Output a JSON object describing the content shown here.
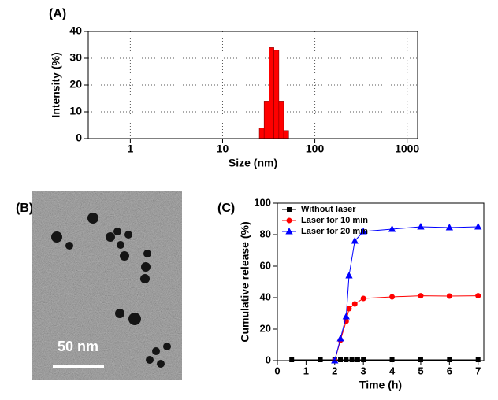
{
  "chart_data": [
    {
      "type": "histogram",
      "label": "(A)",
      "xlabel": "Size (nm)",
      "ylabel": "Intensity (%)",
      "bins": [
        25,
        28.2,
        31.9,
        36,
        40.7,
        46,
        52
      ],
      "values": [
        4,
        14,
        34,
        33,
        14,
        3
      ],
      "color": "#ff0000",
      "xlim": [
        0.35,
        1300
      ],
      "xticks": [
        1,
        10,
        100,
        1000
      ],
      "log_x": true,
      "ylim": [
        0,
        40
      ],
      "yticks": [
        0,
        10,
        20,
        30,
        40
      ],
      "grid": true
    },
    {
      "type": "line",
      "label": "(C)",
      "xlabel": "Time (h)",
      "ylabel": "Cumulative release (%)",
      "xlim": [
        0,
        7.2
      ],
      "xticks": [
        0,
        1,
        2,
        3,
        4,
        5,
        6,
        7
      ],
      "ylim": [
        0,
        100
      ],
      "yticks": [
        0,
        20,
        40,
        60,
        80,
        100
      ],
      "grid": false,
      "legend": "upper left",
      "series": [
        {
          "name": "Without laser",
          "color": "#000000",
          "marker": "square",
          "x": [
            0.5,
            1.5,
            2,
            2.2,
            2.4,
            2.6,
            2.8,
            3,
            4,
            5,
            6,
            7
          ],
          "values": [
            0.5,
            0.5,
            0.5,
            0.5,
            0.5,
            0.5,
            0.5,
            0.5,
            0.5,
            0.5,
            0.5,
            0.5
          ]
        },
        {
          "name": "Laser for 10 min",
          "color": "#ff0000",
          "marker": "circle",
          "x": [
            2,
            2.2,
            2.4,
            2.5,
            2.7,
            3,
            4,
            5,
            6,
            7
          ],
          "values": [
            0,
            13,
            25,
            33,
            36,
            39.5,
            40.5,
            41.2,
            41,
            41.2
          ]
        },
        {
          "name": "Laser for 20 min",
          "color": "#0000ff",
          "marker": "triangle",
          "x": [
            2,
            2.2,
            2.4,
            2.5,
            2.7,
            3,
            4,
            5,
            6,
            7
          ],
          "values": [
            0,
            14,
            28,
            54,
            76,
            82,
            83.5,
            85,
            84.5,
            85
          ]
        }
      ]
    }
  ],
  "image": {
    "label": "(B)",
    "scale_bar": "50 nm"
  }
}
